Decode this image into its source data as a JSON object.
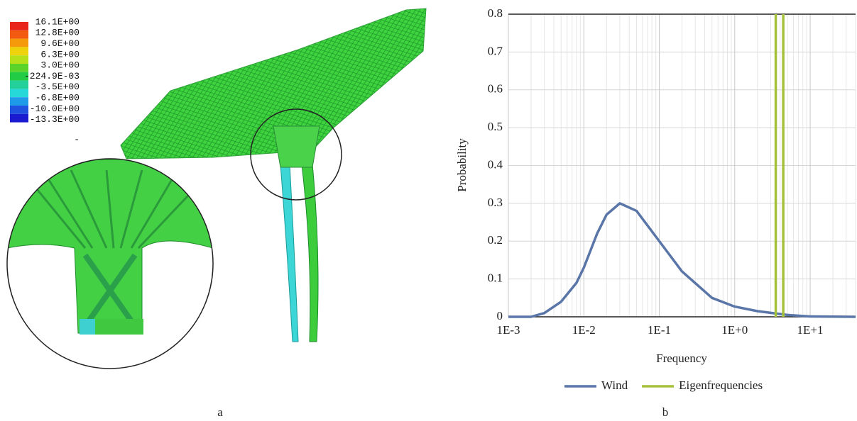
{
  "panel_a": {
    "legend": {
      "labels": [
        "16.1E+00",
        "12.8E+00",
        "9.6E+00",
        "6.3E+00",
        "3.0E+00",
        "-224.9E-03",
        "-3.5E+00",
        "-6.8E+00",
        "-10.0E+00",
        "-13.3E+00"
      ],
      "extra": "-"
    },
    "caption": "a"
  },
  "chart_data": {
    "type": "line",
    "x_label": "Frequency",
    "y_label": "Probability",
    "caption": "b",
    "log_x": true,
    "grid": true,
    "xlim": [
      0.001,
      40
    ],
    "ylim": [
      0,
      0.8
    ],
    "xticks": [
      {
        "value": 0.001,
        "label": "1E-3"
      },
      {
        "value": 0.01,
        "label": "1E-2"
      },
      {
        "value": 0.1,
        "label": "1E-1"
      },
      {
        "value": 1,
        "label": "1E+0"
      },
      {
        "value": 10,
        "label": "1E+1"
      }
    ],
    "yticks": [
      0,
      0.1,
      0.2,
      0.3,
      0.4,
      0.5,
      0.6,
      0.7,
      0.8
    ],
    "series": [
      {
        "name": "Wind",
        "color": "#5a76a8",
        "x": [
          0.001,
          0.002,
          0.003,
          0.005,
          0.008,
          0.01,
          0.015,
          0.02,
          0.03,
          0.05,
          0.1,
          0.2,
          0.5,
          1,
          2,
          5,
          10,
          40
        ],
        "values": [
          0,
          0,
          0.01,
          0.04,
          0.09,
          0.13,
          0.22,
          0.27,
          0.3,
          0.28,
          0.2,
          0.12,
          0.05,
          0.027,
          0.015,
          0.005,
          0.001,
          0
        ]
      },
      {
        "name": "Eigenfrequencies",
        "color": "#a5c13a",
        "x": [
          3.5,
          4.4
        ]
      }
    ]
  }
}
